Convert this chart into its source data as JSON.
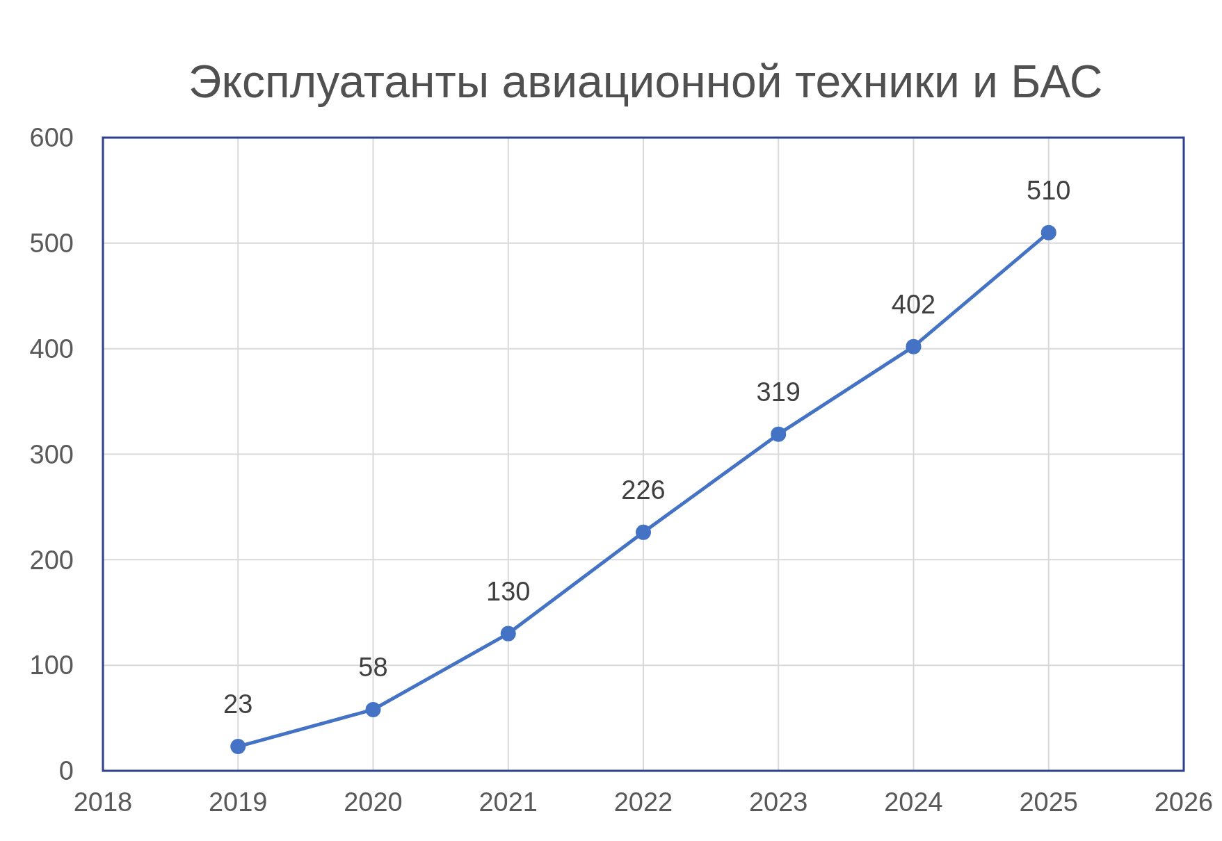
{
  "chart_data": {
    "type": "line",
    "title": "Эксплуатанты авиационной техники и БАС",
    "x": [
      2019,
      2020,
      2021,
      2022,
      2023,
      2024,
      2025
    ],
    "series": [
      {
        "color": "#4472c4",
        "values": [
          23,
          58,
          130,
          226,
          319,
          402,
          510
        ]
      }
    ],
    "xlim": [
      2018,
      2026
    ],
    "xticks": [
      2018,
      2019,
      2020,
      2021,
      2022,
      2023,
      2024,
      2025,
      2026
    ],
    "ylim": [
      0,
      600
    ],
    "yticks": [
      0,
      100,
      200,
      300,
      400,
      500,
      600
    ],
    "grid": true,
    "marker": "circle",
    "line_style": "solid",
    "data_labels": true
  }
}
